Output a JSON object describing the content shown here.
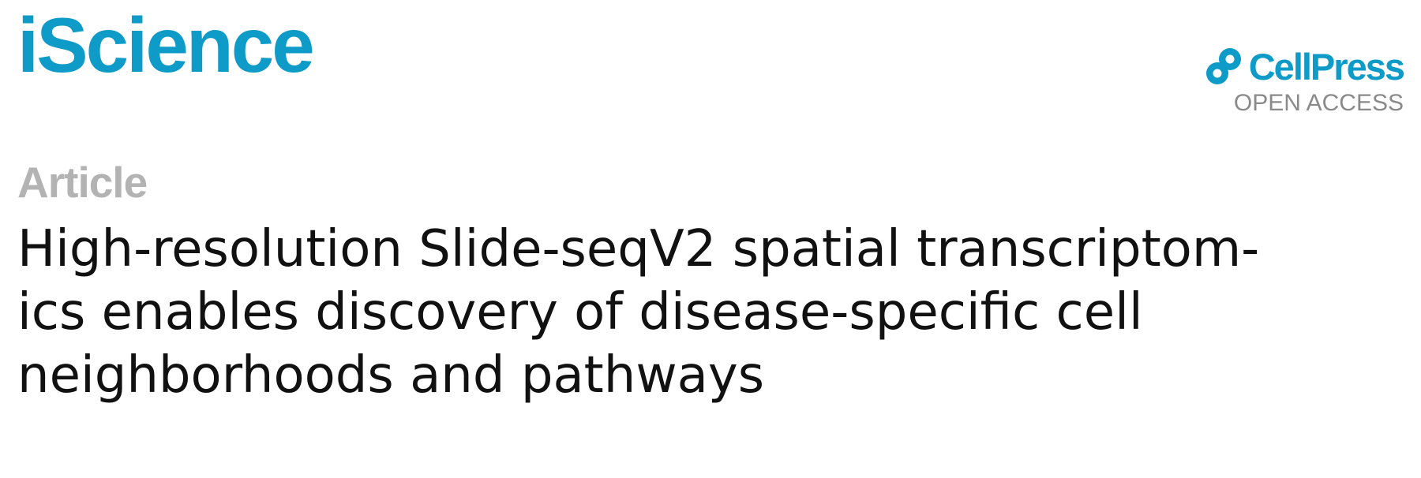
{
  "header": {
    "journal_name": "iScience",
    "publisher_name": "CellPress",
    "publisher_access": "OPEN ACCESS",
    "publisher_icon": "cellpress-logo-icon",
    "brand_color": "#0f9bc8"
  },
  "article": {
    "type_label": "Article",
    "title_lines": [
      "High-resolution Slide-seqV2 spatial transcriptom-",
      "ics enables discovery of disease-specific cell",
      "neighborhoods and pathways"
    ]
  }
}
